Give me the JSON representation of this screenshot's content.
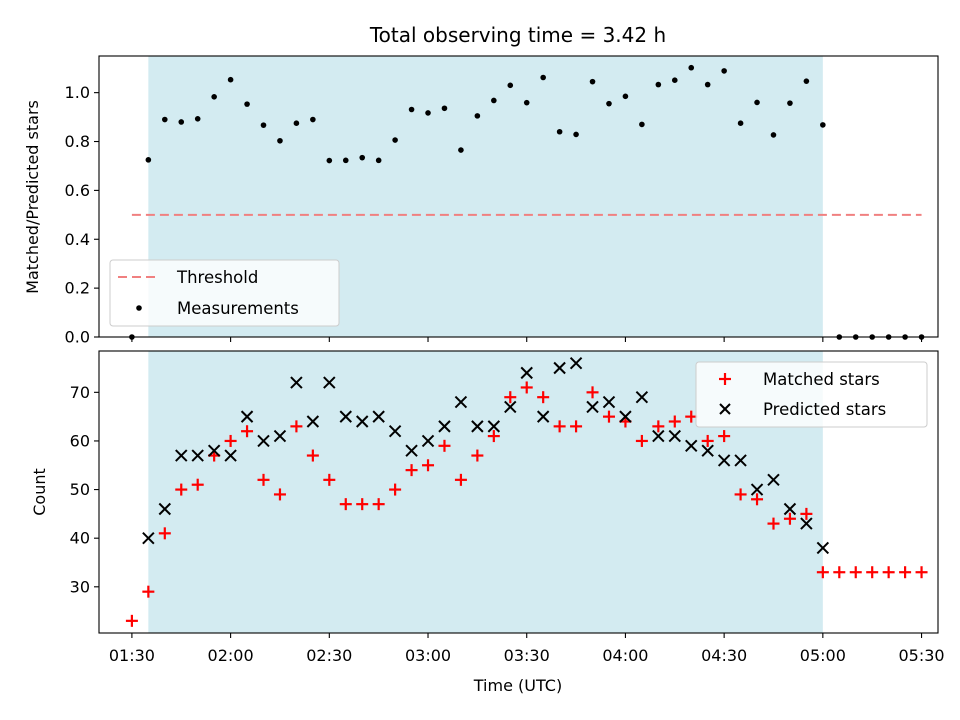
{
  "chart_data": [
    {
      "type": "scatter",
      "title": "Total observing time = 3.42 h",
      "ylabel": "Matched/Predicted stars",
      "xlabel": "",
      "ylim": [
        0,
        1.15
      ],
      "yticks": [
        "0.0",
        "0.2",
        "0.4",
        "0.6",
        "0.8",
        "1.0"
      ],
      "grid": false,
      "legend_position": "lower-left",
      "span": {
        "start": "01:35",
        "end": "05:00",
        "color": "#d3ebf1"
      },
      "threshold": {
        "name": "Threshold",
        "value": 0.5,
        "x_start": "01:30",
        "x_end": "05:30",
        "color": "#f08080"
      },
      "series": [
        {
          "name": "Measurements",
          "color": "#000000",
          "marker": "dot",
          "points": [
            [
              "01:30",
              0.0
            ],
            [
              "01:35",
              0.725
            ],
            [
              "01:40",
              0.89
            ],
            [
              "01:45",
              0.88
            ],
            [
              "01:50",
              0.893
            ],
            [
              "01:55",
              0.983
            ],
            [
              "02:00",
              1.053
            ],
            [
              "02:05",
              0.953
            ],
            [
              "02:10",
              0.867
            ],
            [
              "02:15",
              0.803
            ],
            [
              "02:20",
              0.875
            ],
            [
              "02:25",
              0.89
            ],
            [
              "02:30",
              0.722
            ],
            [
              "02:35",
              0.723
            ],
            [
              "02:40",
              0.734
            ],
            [
              "02:45",
              0.723
            ],
            [
              "02:50",
              0.806
            ],
            [
              "02:55",
              0.931
            ],
            [
              "03:00",
              0.917
            ],
            [
              "03:05",
              0.936
            ],
            [
              "03:10",
              0.765
            ],
            [
              "03:15",
              0.905
            ],
            [
              "03:20",
              0.968
            ],
            [
              "03:25",
              1.03
            ],
            [
              "03:30",
              0.959
            ],
            [
              "03:35",
              1.062
            ],
            [
              "03:40",
              0.84
            ],
            [
              "03:45",
              0.829
            ],
            [
              "03:50",
              1.045
            ],
            [
              "03:55",
              0.955
            ],
            [
              "04:00",
              0.985
            ],
            [
              "04:05",
              0.87
            ],
            [
              "04:10",
              1.033
            ],
            [
              "04:15",
              1.051
            ],
            [
              "04:20",
              1.102
            ],
            [
              "04:25",
              1.033
            ],
            [
              "04:30",
              1.089
            ],
            [
              "04:35",
              0.875
            ],
            [
              "04:40",
              0.96
            ],
            [
              "04:45",
              0.827
            ],
            [
              "04:50",
              0.957
            ],
            [
              "04:55",
              1.047
            ],
            [
              "05:00",
              0.868
            ],
            [
              "05:05",
              0.0
            ],
            [
              "05:10",
              0.0
            ],
            [
              "05:15",
              0.0
            ],
            [
              "05:20",
              0.0
            ],
            [
              "05:25",
              0.0
            ],
            [
              "05:30",
              0.0
            ]
          ]
        }
      ]
    },
    {
      "type": "scatter",
      "title": "",
      "xlabel": "Time (UTC)",
      "ylabel": "Count",
      "xlim": [
        "01:20",
        "05:35"
      ],
      "xticks": [
        "01:30",
        "02:00",
        "02:30",
        "03:00",
        "03:30",
        "04:00",
        "04:30",
        "05:00",
        "05:30"
      ],
      "ylim": [
        20.5,
        78.5
      ],
      "yticks": [
        "30",
        "40",
        "50",
        "60",
        "70"
      ],
      "grid": false,
      "legend_position": "top-right",
      "span": {
        "start": "01:35",
        "end": "05:00",
        "color": "#d3ebf1"
      },
      "series": [
        {
          "name": "Matched stars",
          "color": "#ff0000",
          "marker": "plus",
          "points": [
            [
              "01:30",
              23
            ],
            [
              "01:35",
              29
            ],
            [
              "01:40",
              41
            ],
            [
              "01:45",
              50
            ],
            [
              "01:50",
              51
            ],
            [
              "01:55",
              57
            ],
            [
              "02:00",
              60
            ],
            [
              "02:05",
              62
            ],
            [
              "02:10",
              52
            ],
            [
              "02:15",
              49
            ],
            [
              "02:20",
              63
            ],
            [
              "02:25",
              57
            ],
            [
              "02:30",
              52
            ],
            [
              "02:35",
              47
            ],
            [
              "02:40",
              47
            ],
            [
              "02:45",
              47
            ],
            [
              "02:50",
              50
            ],
            [
              "02:55",
              54
            ],
            [
              "03:00",
              55
            ],
            [
              "03:05",
              59
            ],
            [
              "03:10",
              52
            ],
            [
              "03:15",
              57
            ],
            [
              "03:20",
              61
            ],
            [
              "03:25",
              69
            ],
            [
              "03:30",
              71
            ],
            [
              "03:35",
              69
            ],
            [
              "03:40",
              63
            ],
            [
              "03:45",
              63
            ],
            [
              "03:50",
              70
            ],
            [
              "03:55",
              65
            ],
            [
              "04:00",
              64
            ],
            [
              "04:05",
              60
            ],
            [
              "04:10",
              63
            ],
            [
              "04:15",
              64
            ],
            [
              "04:20",
              65
            ],
            [
              "04:25",
              60
            ],
            [
              "04:30",
              61
            ],
            [
              "04:35",
              49
            ],
            [
              "04:40",
              48
            ],
            [
              "04:45",
              43
            ],
            [
              "04:50",
              44
            ],
            [
              "04:55",
              45
            ],
            [
              "05:00",
              33
            ],
            [
              "05:05",
              33
            ],
            [
              "05:10",
              33
            ],
            [
              "05:15",
              33
            ],
            [
              "05:20",
              33
            ],
            [
              "05:25",
              33
            ],
            [
              "05:30",
              33
            ]
          ]
        },
        {
          "name": "Predicted stars",
          "color": "#000000",
          "marker": "cross",
          "points": [
            [
              "01:35",
              40
            ],
            [
              "01:40",
              46
            ],
            [
              "01:45",
              57
            ],
            [
              "01:50",
              57
            ],
            [
              "01:55",
              58
            ],
            [
              "02:00",
              57
            ],
            [
              "02:05",
              65
            ],
            [
              "02:10",
              60
            ],
            [
              "02:15",
              61
            ],
            [
              "02:20",
              72
            ],
            [
              "02:25",
              64
            ],
            [
              "02:30",
              72
            ],
            [
              "02:35",
              65
            ],
            [
              "02:40",
              64
            ],
            [
              "02:45",
              65
            ],
            [
              "02:50",
              62
            ],
            [
              "02:55",
              58
            ],
            [
              "03:00",
              60
            ],
            [
              "03:05",
              63
            ],
            [
              "03:10",
              68
            ],
            [
              "03:15",
              63
            ],
            [
              "03:20",
              63
            ],
            [
              "03:25",
              67
            ],
            [
              "03:30",
              74
            ],
            [
              "03:35",
              65
            ],
            [
              "03:40",
              75
            ],
            [
              "03:45",
              76
            ],
            [
              "03:50",
              67
            ],
            [
              "03:55",
              68
            ],
            [
              "04:00",
              65
            ],
            [
              "04:05",
              69
            ],
            [
              "04:10",
              61
            ],
            [
              "04:15",
              61
            ],
            [
              "04:20",
              59
            ],
            [
              "04:25",
              58
            ],
            [
              "04:30",
              56
            ],
            [
              "04:35",
              56
            ],
            [
              "04:40",
              50
            ],
            [
              "04:45",
              52
            ],
            [
              "04:50",
              46
            ],
            [
              "04:55",
              43
            ],
            [
              "05:00",
              38
            ]
          ]
        }
      ]
    }
  ]
}
